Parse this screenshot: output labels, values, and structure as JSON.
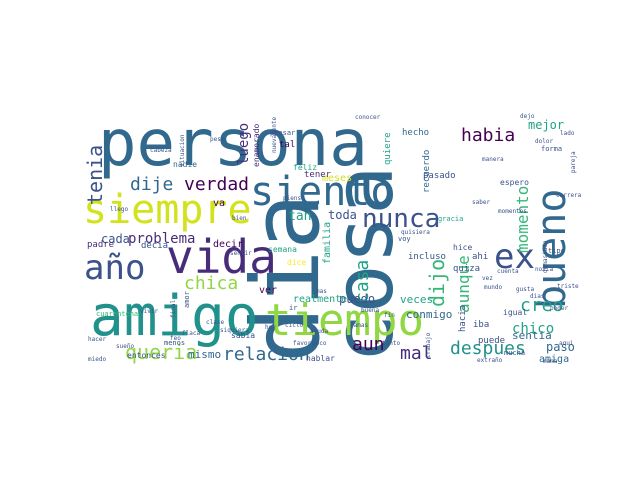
{
  "palette": {
    "dark_purple": "#440154",
    "indigo": "#472c7a",
    "blue": "#3b528b",
    "steel": "#31688e",
    "teal": "#21918c",
    "green_teal": "#20a386",
    "green": "#35b779",
    "lime": "#90d743",
    "yellow": "#d2e21b",
    "bright_yellow": "#fde725"
  },
  "words": [
    {
      "text": "persona"
    },
    {
      "text": "dia"
    },
    {
      "text": "cosa"
    },
    {
      "text": "amigo"
    },
    {
      "text": "siento"
    },
    {
      "text": "siempre"
    },
    {
      "text": "vida"
    },
    {
      "text": "tiempo"
    },
    {
      "text": "año"
    },
    {
      "text": "bueno"
    },
    {
      "text": "nunca"
    },
    {
      "text": "ex"
    },
    {
      "text": "habia"
    },
    {
      "text": "tenia"
    },
    {
      "text": "verdad"
    },
    {
      "text": "dije"
    },
    {
      "text": "momento"
    },
    {
      "text": "casa"
    },
    {
      "text": "chica"
    },
    {
      "text": "queria"
    },
    {
      "text": "dijo"
    },
    {
      "text": "creo"
    },
    {
      "text": "despues"
    },
    {
      "text": "mal"
    },
    {
      "text": "relacion"
    },
    {
      "text": "aun"
    },
    {
      "text": "chico"
    },
    {
      "text": "mejor"
    },
    {
      "text": "luego"
    },
    {
      "text": "tan"
    },
    {
      "text": "toda"
    },
    {
      "text": "problema"
    },
    {
      "text": "cada"
    },
    {
      "text": "mismo"
    },
    {
      "text": "puedo"
    },
    {
      "text": "veces"
    },
    {
      "text": "conmigo"
    },
    {
      "text": "aunque"
    },
    {
      "text": "sentia"
    },
    {
      "text": "paso"
    },
    {
      "text": "amiga"
    },
    {
      "text": "entonces"
    },
    {
      "text": "realmente"
    },
    {
      "text": "incluso"
    },
    {
      "text": "meses"
    },
    {
      "text": "quiere"
    },
    {
      "text": "recuerdo"
    },
    {
      "text": "pasado"
    },
    {
      "text": "tener"
    },
    {
      "text": "hecho"
    },
    {
      "text": "enamorado"
    },
    {
      "text": "nadie"
    },
    {
      "text": "padre"
    },
    {
      "text": "decia"
    },
    {
      "text": "decir"
    },
    {
      "text": "va"
    },
    {
      "text": "ver"
    },
    {
      "text": "semana"
    },
    {
      "text": "familia"
    },
    {
      "text": "hablar"
    },
    {
      "text": "sabia"
    },
    {
      "text": "iba"
    },
    {
      "text": "ahi"
    },
    {
      "text": "quiza"
    },
    {
      "text": "puede"
    },
    {
      "text": "hacia"
    },
    {
      "text": "amor"
    },
    {
      "text": "feliz"
    },
    {
      "text": "dice"
    },
    {
      "text": "tal"
    },
    {
      "text": "situacion"
    },
    {
      "text": "espero"
    },
    {
      "text": "forma"
    },
    {
      "text": "dejo"
    },
    {
      "text": "pensar"
    },
    {
      "text": "hice"
    },
    {
      "text": "igual"
    },
    {
      "text": "menos"
    },
    {
      "text": "mucha"
    },
    {
      "text": "extraño"
    },
    {
      "text": "trabajo"
    },
    {
      "text": "final"
    },
    {
      "text": "flaca"
    },
    {
      "text": "llego"
    },
    {
      "text": "voy"
    },
    {
      "text": "tipo"
    },
    {
      "text": "miedo"
    },
    {
      "text": "poder"
    },
    {
      "text": "triste"
    },
    {
      "text": "aqui"
    },
    {
      "text": "ciclo"
    },
    {
      "text": "favor"
    },
    {
      "text": "saber"
    },
    {
      "text": "lado"
    },
    {
      "text": "dolor"
    },
    {
      "text": "pese"
    },
    {
      "text": "gracia"
    },
    {
      "text": "poco"
    },
    {
      "text": "ir"
    },
    {
      "text": "sentir"
    },
    {
      "text": "cuenta"
    },
    {
      "text": "cabeza"
    },
    {
      "text": "cuarentena"
    },
    {
      "text": "clase"
    },
    {
      "text": "hoy"
    },
    {
      "text": "demasiado"
    },
    {
      "text": "manera"
    },
    {
      "text": "pareja"
    },
    {
      "text": "gusta"
    },
    {
      "text": "novia"
    },
    {
      "text": "nuevamente"
    },
    {
      "text": "momentos"
    },
    {
      "text": "conocer"
    },
    {
      "text": "quisiera"
    },
    {
      "text": "bien"
    },
    {
      "text": "fin"
    },
    {
      "text": "jamas"
    },
    {
      "text": "buena"
    },
    {
      "text": "sueño"
    },
    {
      "text": "vez"
    },
    {
      "text": "mama"
    },
    {
      "text": "pienso"
    },
    {
      "text": "carrera"
    },
    {
      "text": "vivir"
    },
    {
      "text": "mundo"
    },
    {
      "text": "ayuda"
    },
    {
      "text": "siquiera"
    },
    {
      "text": "dias"
    },
    {
      "text": "hacer"
    },
    {
      "text": "feo"
    },
    {
      "text": "mas"
    },
    {
      "text": "tanto"
    }
  ]
}
